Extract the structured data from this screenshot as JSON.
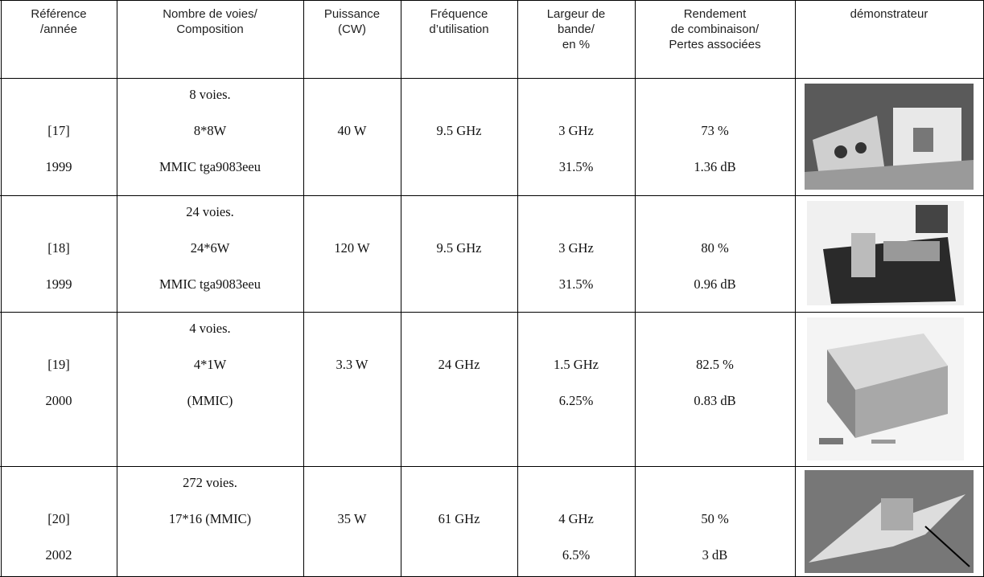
{
  "table": {
    "header": [
      [
        "Référence",
        "/année"
      ],
      [
        "Nombre de voies/",
        "Composition"
      ],
      [
        "Puissance",
        "(CW)"
      ],
      [
        "Fréquence",
        "d’utilisation"
      ],
      [
        "Largeur de",
        "bande/",
        "en %"
      ],
      [
        "Rendement",
        "de combinaison/",
        "Pertes associées"
      ],
      [
        "démonstrateur"
      ]
    ],
    "rows": [
      [
        [
          "[17]",
          "1999"
        ],
        [
          "8 voies.",
          "8*8W",
          "MMIC tga9083eeu"
        ],
        [
          "40 W"
        ],
        [
          "9.5 GHz"
        ],
        [
          "3 GHz",
          "31.5%"
        ],
        [
          "73 %",
          "1.36 dB"
        ]
      ],
      [
        [
          "[18]",
          "1999"
        ],
        [
          "24 voies.",
          "24*6W",
          "MMIC tga9083eeu"
        ],
        [
          "120 W"
        ],
        [
          "9.5 GHz"
        ],
        [
          "3 GHz",
          "31.5%"
        ],
        [
          "80 %",
          "0.96 dB"
        ]
      ],
      [
        [
          "[19]",
          "2000"
        ],
        [
          "4 voies.",
          "4*1W",
          "(MMIC)"
        ],
        [
          "3.3 W"
        ],
        [
          "24 GHz"
        ],
        [
          "1.5 GHz",
          "6.25%"
        ],
        [
          "82.5 %",
          "0.83 dB"
        ]
      ],
      [
        [
          "[20]",
          "2002"
        ],
        [
          "272 voies.",
          "17*16 (MMIC)"
        ],
        [
          "35 W"
        ],
        [
          "61 GHz"
        ],
        [
          "4 GHz",
          "6.5%"
        ],
        [
          "50 %",
          "3 dB"
        ]
      ]
    ]
  }
}
